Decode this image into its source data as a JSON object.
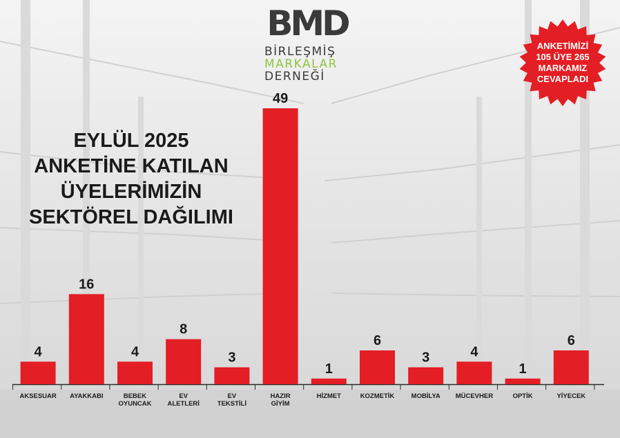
{
  "logo": {
    "name": "BMD",
    "line1": "BİRLEŞMİŞ",
    "line2": "MARKALAR",
    "line3": "DERNEĞİ"
  },
  "title_lines": [
    "EYLÜL 2025",
    "ANKETİNE KATILAN",
    "ÜYELERİMİZİN",
    "SEKTÖREL DAĞILIMI"
  ],
  "badge": {
    "lines": [
      "ANKETİMİZİ",
      "105 ÜYE 265",
      "MARKAMIZ",
      "CEVAPLADI"
    ],
    "color": "#e31e24"
  },
  "chart_data": {
    "type": "bar",
    "title": "EYLÜL 2025 ANKETİNE KATILAN ÜYELERİMİZİN SEKTÖREL DAĞILIMI",
    "categories": [
      [
        "AKSESUAR"
      ],
      [
        "AYAKKABI"
      ],
      [
        "BEBEK",
        "OYUNCAK"
      ],
      [
        "EV",
        "ALETLERİ"
      ],
      [
        "EV",
        "TEKSTİLİ"
      ],
      [
        "HAZIR",
        "GİYİM"
      ],
      [
        "HİZMET"
      ],
      [
        "KOZMETİK"
      ],
      [
        "MOBİLYA"
      ],
      [
        "MÜCEVHER"
      ],
      [
        "OPTİK"
      ],
      [
        "YİYECEK"
      ]
    ],
    "values": [
      4,
      16,
      4,
      8,
      3,
      49,
      1,
      6,
      3,
      4,
      1,
      6
    ],
    "ylim": [
      0,
      49
    ],
    "grid": false,
    "bar_color": "#e31e24"
  }
}
